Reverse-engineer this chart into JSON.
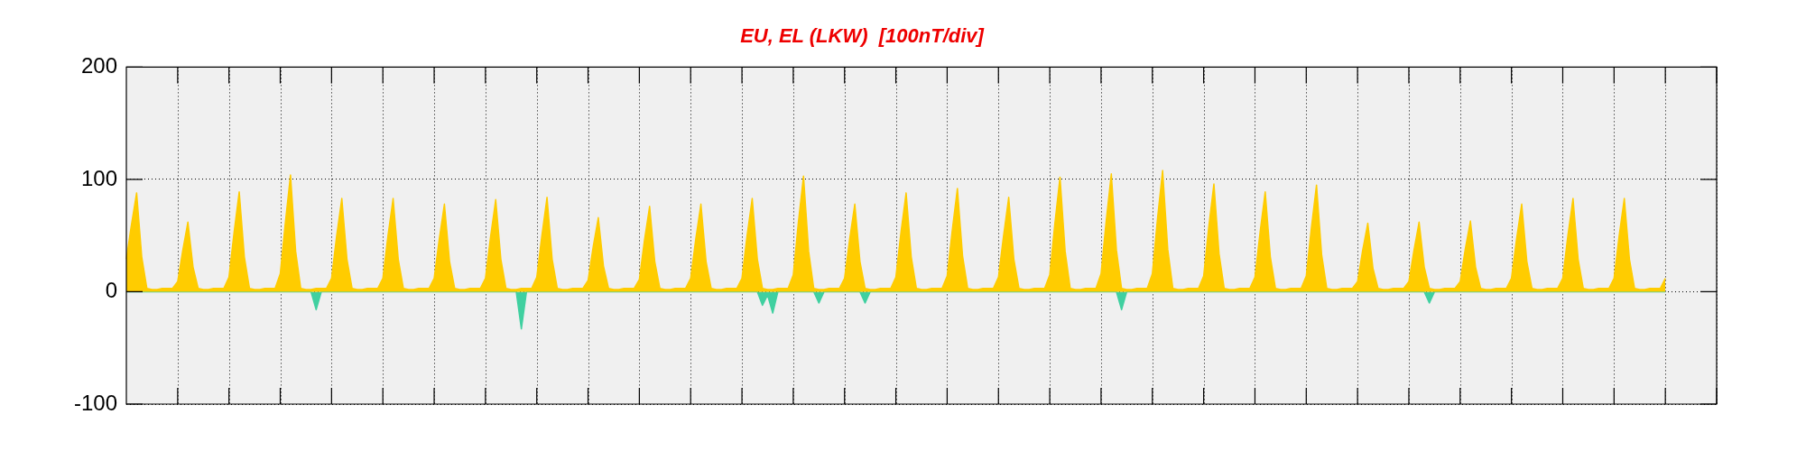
{
  "chart_data": {
    "type": "area",
    "title": "EU, EL (LKW)  [100nT/div]",
    "ylim": [
      -100,
      200
    ],
    "yticks": [
      -100,
      0,
      100,
      200
    ],
    "categories": [
      null,
      null,
      null,
      null,
      null,
      null,
      null,
      null,
      null,
      null,
      null,
      null,
      null,
      null,
      null,
      null,
      null,
      null,
      null,
      null,
      null,
      null,
      null,
      null,
      null,
      null,
      null,
      null,
      null,
      null,
      null,
      null,
      null,
      null,
      null,
      null,
      null,
      null,
      null,
      null,
      null,
      null,
      null,
      null,
      null,
      null,
      null,
      null,
      null,
      null,
      null,
      null,
      null,
      null,
      null,
      null,
      null,
      null,
      null,
      null,
      null,
      null,
      null,
      null,
      null,
      null,
      null,
      null,
      null,
      null,
      null,
      null,
      null,
      null,
      null,
      null,
      null,
      null,
      null,
      null,
      null,
      null,
      null,
      null,
      null,
      null,
      null,
      null,
      null,
      null,
      null,
      null,
      null,
      null,
      null,
      null,
      null,
      null,
      null,
      null,
      null,
      null,
      null,
      null,
      null,
      null,
      null,
      null,
      null,
      null,
      null,
      null,
      null,
      null,
      null,
      null,
      null,
      null,
      null,
      null,
      null,
      null,
      null,
      null,
      null,
      null,
      null,
      null,
      null,
      null,
      null,
      null,
      null,
      null,
      null,
      null,
      null,
      null,
      null,
      null,
      null,
      null,
      null,
      null,
      null,
      null,
      null,
      null,
      null,
      null,
      null,
      null,
      null,
      null,
      null,
      null,
      null,
      null,
      null,
      null,
      null,
      null,
      null,
      null,
      null,
      null,
      null,
      null,
      null,
      null,
      null,
      null,
      null,
      null,
      null,
      null,
      null,
      null,
      null,
      null,
      null,
      null,
      null,
      null,
      null,
      null,
      null,
      null,
      null,
      null,
      null,
      null,
      null,
      null,
      null,
      null,
      null,
      null,
      null,
      null,
      null,
      null,
      null,
      null,
      null,
      null,
      null,
      null,
      null,
      null,
      null,
      null,
      null,
      null,
      null,
      null,
      null,
      null,
      null,
      null,
      null,
      null,
      null,
      null,
      null,
      null,
      null,
      null,
      null,
      null,
      null,
      null,
      null,
      null,
      null,
      null,
      null,
      null,
      null,
      null,
      null,
      null,
      null,
      null,
      null,
      null,
      null,
      null,
      null,
      null,
      null,
      null,
      null,
      null,
      null,
      null,
      null,
      null,
      null,
      null,
      null,
      null,
      null,
      null,
      null,
      null,
      null,
      null,
      null,
      null,
      null,
      null,
      null,
      null,
      null,
      null,
      null,
      null,
      null,
      null,
      null,
      null,
      null,
      null,
      null,
      null,
      null,
      null,
      null,
      null,
      null,
      null,
      null,
      null,
      null,
      null,
      null,
      null,
      null,
      null,
      null,
      null,
      null,
      null,
      null,
      null,
      null,
      null,
      null,
      null,
      null
    ],
    "tick_labels": "y",
    "grid": true,
    "marker": "none",
    "series": [
      {
        "color": "#ffcc00",
        "values": [
          29,
          60,
          88,
          31,
          3,
          2,
          2,
          3,
          3,
          3,
          9,
          37,
          62,
          22,
          3,
          2,
          2,
          3,
          3,
          3,
          13,
          53,
          89,
          31,
          3,
          2,
          2,
          3,
          3,
          3,
          16,
          62,
          104,
          36,
          3,
          2,
          2,
          3,
          3,
          3,
          12,
          50,
          83,
          29,
          3,
          2,
          2,
          3,
          3,
          3,
          12,
          50,
          83,
          29,
          3,
          2,
          2,
          3,
          3,
          3,
          12,
          47,
          78,
          27,
          3,
          2,
          2,
          3,
          3,
          3,
          12,
          49,
          82,
          29,
          3,
          2,
          2,
          3,
          3,
          3,
          13,
          50,
          84,
          29,
          3,
          2,
          2,
          3,
          3,
          3,
          10,
          40,
          66,
          23,
          3,
          2,
          2,
          3,
          3,
          3,
          11,
          46,
          76,
          27,
          3,
          2,
          2,
          3,
          3,
          3,
          12,
          47,
          78,
          27,
          3,
          2,
          2,
          3,
          3,
          3,
          12,
          50,
          83,
          29,
          3,
          2,
          2,
          3,
          3,
          3,
          15,
          62,
          103,
          36,
          3,
          2,
          2,
          3,
          3,
          3,
          12,
          47,
          78,
          27,
          3,
          2,
          2,
          3,
          3,
          3,
          13,
          53,
          88,
          31,
          3,
          2,
          2,
          3,
          3,
          3,
          14,
          55,
          92,
          32,
          3,
          2,
          2,
          3,
          3,
          3,
          13,
          50,
          84,
          29,
          3,
          2,
          2,
          3,
          3,
          3,
          15,
          61,
          102,
          36,
          3,
          2,
          2,
          3,
          3,
          3,
          16,
          63,
          105,
          37,
          3,
          2,
          2,
          3,
          3,
          3,
          16,
          65,
          108,
          38,
          3,
          2,
          2,
          3,
          3,
          3,
          14,
          58,
          96,
          34,
          3,
          2,
          2,
          3,
          3,
          3,
          13,
          53,
          89,
          31,
          3,
          2,
          2,
          3,
          3,
          3,
          14,
          57,
          95,
          33,
          3,
          2,
          2,
          3,
          3,
          3,
          9,
          37,
          61,
          21,
          3,
          2,
          2,
          3,
          3,
          3,
          9,
          37,
          62,
          22,
          3,
          2,
          2,
          3,
          3,
          3,
          9,
          38,
          63,
          22,
          3,
          2,
          2,
          3,
          3,
          3,
          12,
          47,
          78,
          27,
          3,
          2,
          2,
          3,
          3,
          3,
          12,
          50,
          83,
          29,
          3,
          2,
          2,
          3,
          3,
          3,
          12,
          50,
          83,
          29,
          3,
          2,
          2,
          3,
          3,
          3,
          12,
          null,
          null,
          null,
          null,
          null,
          null,
          null,
          null,
          null,
          null
        ]
      },
      {
        "color": "#40d0a0",
        "values": [
          0,
          0,
          0,
          0,
          0,
          0,
          0,
          0,
          0,
          0,
          0,
          0,
          0,
          0,
          0,
          0,
          0,
          0,
          0,
          0,
          0,
          0,
          0,
          0,
          0,
          0,
          0,
          0,
          0,
          0,
          0,
          0,
          0,
          0,
          0,
          0,
          0,
          -16,
          0,
          0,
          0,
          0,
          0,
          0,
          0,
          0,
          0,
          0,
          0,
          0,
          0,
          0,
          0,
          0,
          0,
          0,
          0,
          0,
          0,
          0,
          0,
          0,
          0,
          0,
          0,
          0,
          0,
          0,
          0,
          0,
          0,
          0,
          0,
          0,
          0,
          0,
          0,
          -33,
          0,
          0,
          0,
          0,
          0,
          0,
          0,
          0,
          0,
          0,
          0,
          0,
          0,
          0,
          0,
          0,
          0,
          0,
          0,
          0,
          0,
          0,
          0,
          0,
          0,
          0,
          0,
          0,
          0,
          0,
          0,
          0,
          0,
          0,
          0,
          0,
          0,
          0,
          0,
          0,
          0,
          0,
          0,
          0,
          0,
          0,
          -12,
          -3,
          -19,
          0,
          0,
          0,
          0,
          0,
          0,
          0,
          0,
          -10,
          0,
          0,
          0,
          0,
          0,
          0,
          0,
          0,
          -10,
          0,
          0,
          0,
          0,
          0,
          0,
          0,
          0,
          0,
          0,
          0,
          0,
          0,
          0,
          0,
          0,
          0,
          0,
          0,
          0,
          0,
          0,
          0,
          0,
          0,
          0,
          0,
          0,
          0,
          0,
          0,
          0,
          0,
          0,
          0,
          0,
          0,
          0,
          0,
          0,
          0,
          0,
          0,
          0,
          0,
          0,
          0,
          0,
          0,
          -16,
          0,
          0,
          0,
          0,
          0,
          0,
          0,
          0,
          0,
          0,
          0,
          0,
          0,
          0,
          0,
          0,
          0,
          0,
          0,
          0,
          0,
          0,
          0,
          0,
          0,
          0,
          0,
          0,
          0,
          0,
          0,
          0,
          0,
          0,
          0,
          0,
          0,
          0,
          0,
          0,
          0,
          0,
          0,
          0,
          0,
          0,
          0,
          0,
          0,
          0,
          0,
          0,
          0,
          0,
          0,
          0,
          0,
          0,
          0,
          -10,
          0,
          0,
          0,
          0,
          0,
          0,
          0,
          0,
          0,
          0,
          0,
          0,
          0,
          0,
          0,
          0,
          0,
          0,
          0,
          0,
          0,
          0,
          0,
          0,
          0,
          0,
          0,
          0,
          0,
          0,
          0,
          0,
          0,
          0,
          0,
          0,
          0,
          0,
          0,
          0,
          0,
          0,
          0,
          0,
          0,
          0,
          null,
          null,
          null,
          null,
          null,
          null,
          null,
          null,
          null,
          null
        ]
      }
    ]
  }
}
